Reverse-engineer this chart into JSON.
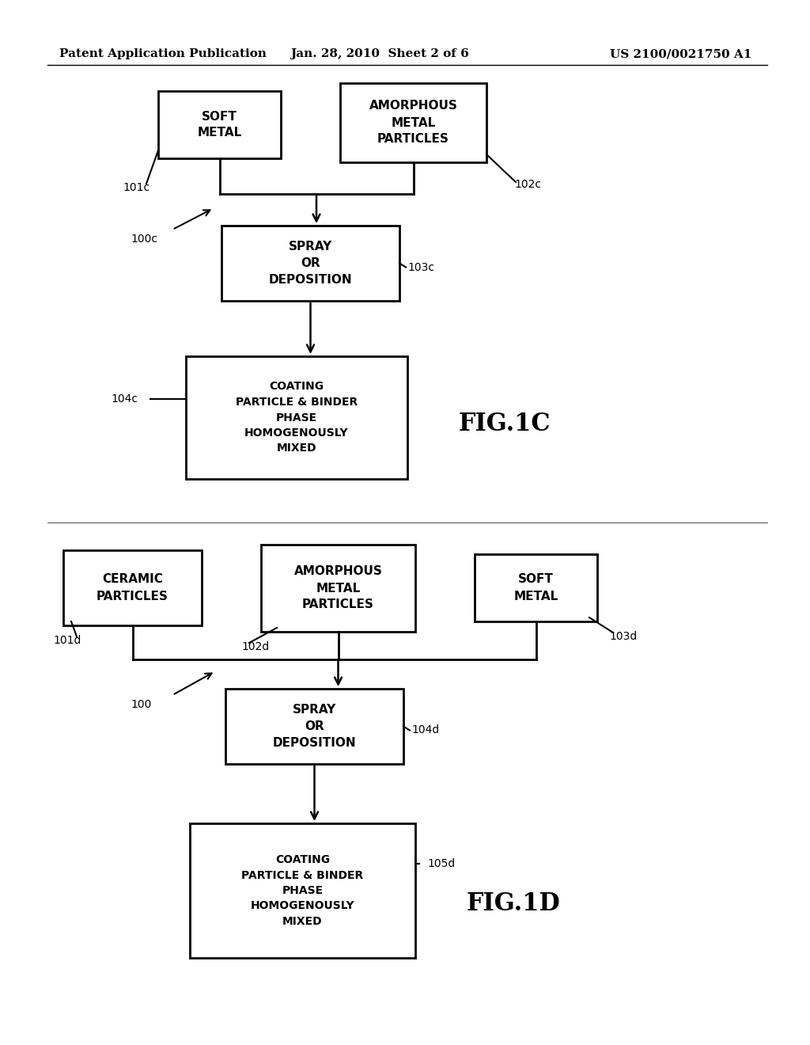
{
  "background_color": "#ffffff",
  "header_left": "Patent Application Publication",
  "header_center": "Jan. 28, 2010  Sheet 2 of 6",
  "header_right": "US 2100/0021750 A1",
  "fig1c_soft_metal": "SOFT\nMETAL",
  "fig1c_amorphous": "AMORPHOUS\nMETAL\nPARTICLES",
  "fig1c_spray": "SPRAY\nOR\nDEPOSITION",
  "fig1c_coating": "COATING\nPARTICLE & BINDER\nPHASE\nHOMOGENOUSLY\nMIXED",
  "fig1c_label": "FIG.1C",
  "fig1c_lbl_101": "101c",
  "fig1c_lbl_102": "102c",
  "fig1c_lbl_103": "103c",
  "fig1c_lbl_104": "104c",
  "fig1c_lbl_100": "100c",
  "fig1d_ceramic": "CERAMIC\nPARTICLES",
  "fig1d_amorphous": "AMORPHOUS\nMETAL\nPARTICLES",
  "fig1d_soft_metal": "SOFT\nMETAL",
  "fig1d_spray": "SPRAY\nOR\nDEPOSITION",
  "fig1d_coating": "COATING\nPARTICLE & BINDER\nPHASE\nHOMOGENOUSLY\nMIXED",
  "fig1d_label": "FIG.1D",
  "fig1d_lbl_101": "101d",
  "fig1d_lbl_102": "102d",
  "fig1d_lbl_103": "103d",
  "fig1d_lbl_104": "104d",
  "fig1d_lbl_105": "105d",
  "fig1d_lbl_100": "100"
}
